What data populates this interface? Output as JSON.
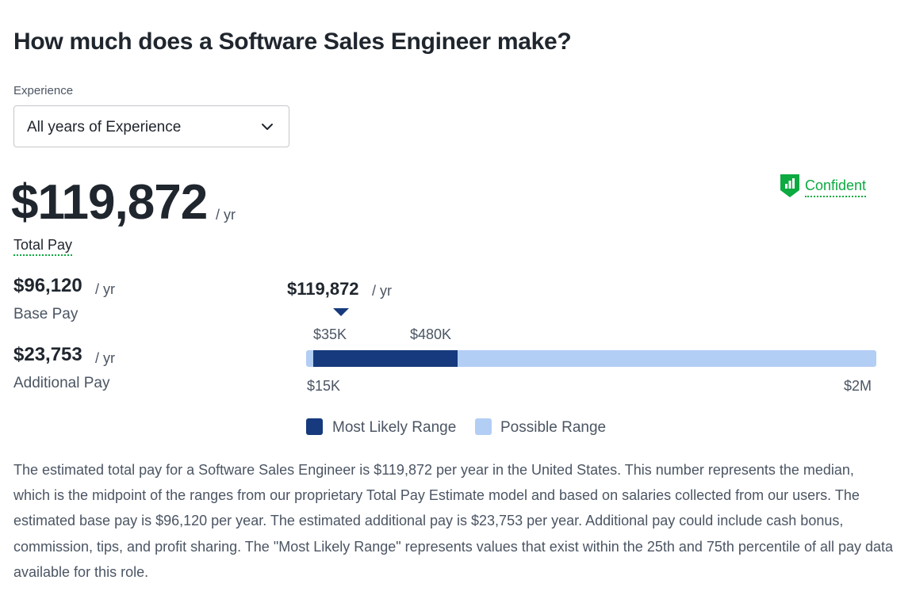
{
  "header": {
    "title": "How much does a Software Sales Engineer make?"
  },
  "experience": {
    "label": "Experience",
    "selected": "All years of Experience"
  },
  "confidence": {
    "label": "Confident",
    "color": "#0caa41",
    "icon": "bar-chart-shield-icon"
  },
  "total_pay": {
    "amount": "$119,872",
    "per": "/ yr",
    "label": "Total Pay"
  },
  "base_pay": {
    "amount": "$96,120",
    "per": "/ yr",
    "label": "Base Pay"
  },
  "additional_pay": {
    "amount": "$23,753",
    "per": "/ yr",
    "label": "Additional Pay"
  },
  "chart_data": {
    "type": "range-bar",
    "marker": {
      "value": 119872,
      "label": "$119,872",
      "per": "/ yr"
    },
    "most_likely_range": {
      "low": 35000,
      "high": 480000,
      "low_label": "$35K",
      "high_label": "$480K",
      "color": "#163a7d"
    },
    "possible_range": {
      "low": 15000,
      "high": 2000000,
      "low_label": "$15K",
      "high_label": "$2M",
      "color": "#b3cef5"
    },
    "legend": [
      {
        "label": "Most Likely Range",
        "color": "#163a7d"
      },
      {
        "label": "Possible Range",
        "color": "#b3cef5"
      }
    ]
  },
  "description": "The estimated total pay for a Software Sales Engineer is $119,872 per year in the United States. This number represents the median, which is the midpoint of the ranges from our proprietary Total Pay Estimate model and based on salaries collected from our users. The estimated base pay is $96,120 per year. The estimated additional pay is $23,753 per year. Additional pay could include cash bonus, commission, tips, and profit sharing. The \"Most Likely Range\" represents values that exist within the 25th and 75th percentile of all pay data available for this role."
}
